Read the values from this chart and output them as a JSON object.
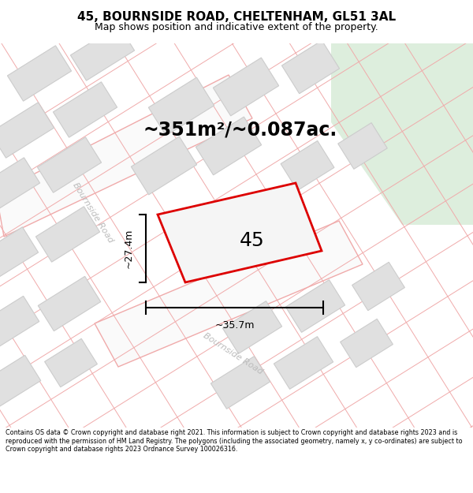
{
  "title": "45, BOURNSIDE ROAD, CHELTENHAM, GL51 3AL",
  "subtitle": "Map shows position and indicative extent of the property.",
  "area_text": "~351m²/~0.087ac.",
  "label_45": "45",
  "dim_width": "~35.7m",
  "dim_height": "~27.4m",
  "footer": "Contains OS data © Crown copyright and database right 2021. This information is subject to Crown copyright and database rights 2023 and is reproduced with the permission of HM Land Registry. The polygons (including the associated geometry, namely x, y co-ordinates) are subject to Crown copyright and database rights 2023 Ordnance Survey 100026316.",
  "road_label_upper": "Bournside Road",
  "road_label_lower": "Bournside Road",
  "map_bg": "#f2f2f2",
  "green_color": "#ddeedd",
  "building_fill": "#e0e0e0",
  "building_edge": "#cccccc",
  "road_fill": "#fafafa",
  "road_line": "#f0aaaa",
  "plot_edge": "#dd0000",
  "plot_fill": "#f5f5f5",
  "title_fontsize": 11,
  "subtitle_fontsize": 9,
  "area_fontsize": 17,
  "label_fontsize": 18,
  "dim_fontsize": 9,
  "road_label_fontsize": 8,
  "footer_fontsize": 5.8
}
